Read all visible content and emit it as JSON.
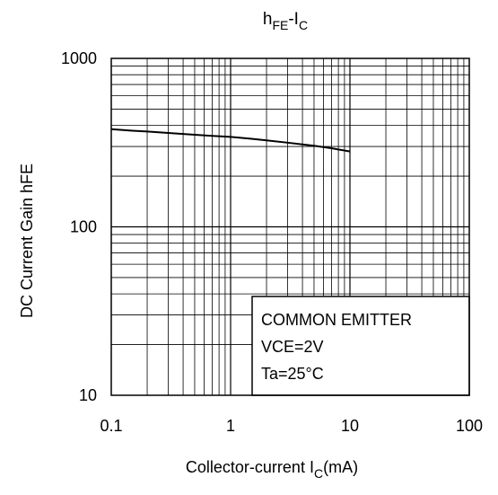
{
  "chart_data": {
    "type": "line",
    "title": {
      "main": "h",
      "main_sub": "FE",
      "sep": "-I",
      "sep_sub": "C"
    },
    "xlabel": {
      "prefix": "Collector-current I",
      "sub": "C",
      "suffix": "(mA)"
    },
    "ylabel": "DC Current Gain hFE",
    "x_scale": "log",
    "y_scale": "log",
    "xlim": [
      0.1,
      100
    ],
    "ylim": [
      10,
      1000
    ],
    "x_ticks": [
      {
        "value": 0.1,
        "label": "0.1"
      },
      {
        "value": 1,
        "label": "1"
      },
      {
        "value": 10,
        "label": "10"
      },
      {
        "value": 100,
        "label": "100"
      }
    ],
    "y_ticks": [
      {
        "value": 10,
        "label": "10"
      },
      {
        "value": 100,
        "label": "100"
      },
      {
        "value": 1000,
        "label": "1000"
      }
    ],
    "grid": true,
    "series": [
      {
        "x": [
          0.1,
          0.15,
          0.2,
          0.3,
          0.5,
          0.7,
          1,
          1.5,
          2,
          3,
          5,
          7,
          10
        ],
        "y": [
          380,
          372,
          368,
          361,
          352,
          347,
          342,
          333,
          326,
          316,
          303,
          293,
          280
        ]
      }
    ],
    "legend": {
      "placement": "bottom-right",
      "lines": [
        "COMMON EMITTER",
        "VCE=2V",
        "Ta=25°C"
      ]
    },
    "colors": {
      "line": "#000000",
      "grid": "#000000",
      "background": "#ffffff"
    }
  }
}
